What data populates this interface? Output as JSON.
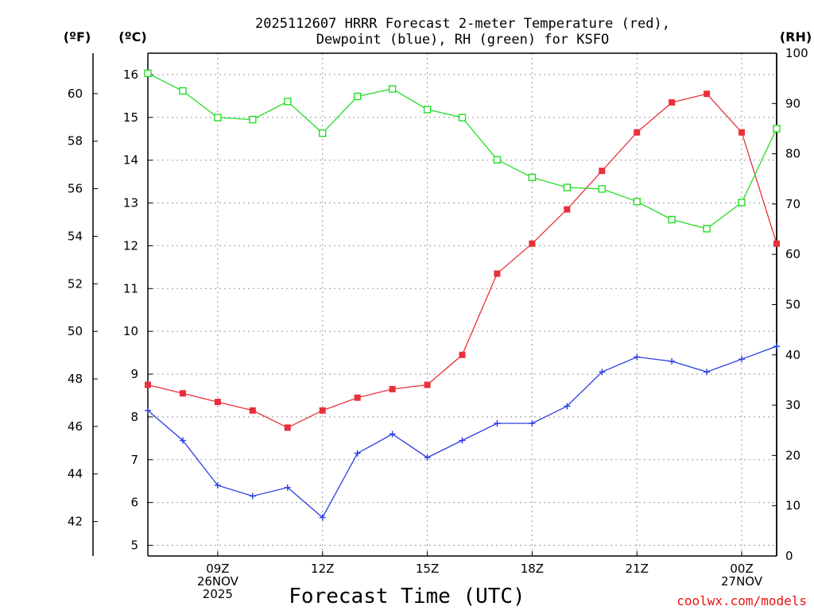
{
  "chart_data": {
    "type": "line",
    "title_line1": "2025112607 HRRR Forecast 2-meter Temperature (red),",
    "title_line2": "Dewpoint (blue), RH (green) for KSFO",
    "xlabel": "Forecast Time (UTC)",
    "credit": "coolwx.com/models",
    "units": {
      "fahrenheit": "(ºF)",
      "celsius": "(ºC)",
      "rh": "(RH)"
    },
    "x_hours": [
      7,
      8,
      9,
      10,
      11,
      12,
      13,
      14,
      15,
      16,
      17,
      18,
      19,
      20,
      21,
      22,
      23,
      24,
      25
    ],
    "xlim": [
      7,
      25
    ],
    "x_ticks": [
      {
        "hour": 9,
        "lines": [
          "09Z",
          "26NOV",
          "2025"
        ]
      },
      {
        "hour": 12,
        "lines": [
          "12Z"
        ]
      },
      {
        "hour": 15,
        "lines": [
          "15Z"
        ]
      },
      {
        "hour": 18,
        "lines": [
          "18Z"
        ]
      },
      {
        "hour": 21,
        "lines": [
          "21Z"
        ]
      },
      {
        "hour": 24,
        "lines": [
          "00Z",
          "27NOV"
        ]
      }
    ],
    "celsius_axis": {
      "ylim": [
        4.75,
        16.5
      ],
      "ticks": [
        5,
        6,
        7,
        8,
        9,
        10,
        11,
        12,
        13,
        14,
        15,
        16
      ]
    },
    "fahrenheit_axis": {
      "ticks": [
        42,
        44,
        46,
        48,
        50,
        52,
        54,
        56,
        58,
        60
      ]
    },
    "rh_axis": {
      "ylim": [
        0,
        100
      ],
      "ticks": [
        0,
        10,
        20,
        30,
        40,
        50,
        60,
        70,
        80,
        90,
        100
      ]
    },
    "series": [
      {
        "name": "Temperature",
        "axis": "celsius",
        "color": "#e8303a",
        "marker": "filled-square",
        "values": [
          8.75,
          8.55,
          8.35,
          8.15,
          7.75,
          8.15,
          8.45,
          8.65,
          8.75,
          9.45,
          11.35,
          12.05,
          12.85,
          13.75,
          14.65,
          15.35,
          15.55,
          14.65,
          12.05
        ]
      },
      {
        "name": "Dewpoint",
        "axis": "celsius",
        "color": "#2a3de0",
        "marker": "plus",
        "values": [
          8.15,
          7.45,
          6.4,
          6.15,
          6.35,
          5.65,
          7.15,
          7.6,
          7.05,
          7.45,
          7.85,
          7.85,
          8.25,
          9.05,
          9.4,
          9.3,
          9.05,
          9.35,
          9.65
        ]
      },
      {
        "name": "RH",
        "axis": "rh",
        "color": "#22dd22",
        "marker": "open-square",
        "values": [
          96,
          92.5,
          87.2,
          86.8,
          90.4,
          84.1,
          91.4,
          92.9,
          88.8,
          87.2,
          78.8,
          75.3,
          73.3,
          73.0,
          70.5,
          66.9,
          65.1,
          70.3,
          85.0
        ]
      }
    ]
  }
}
